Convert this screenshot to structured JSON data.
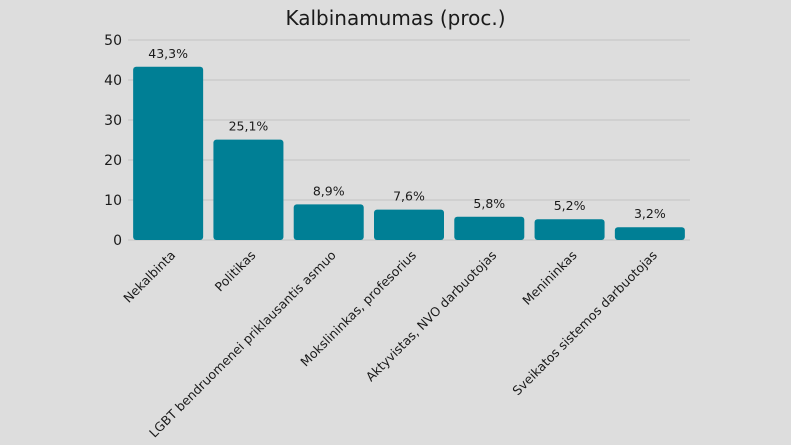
{
  "chart_data": {
    "type": "bar",
    "title": "Kalbinamumas (proc.)",
    "xlabel": "",
    "ylabel": "",
    "ylim": [
      0,
      50
    ],
    "yticks": [
      0,
      10,
      20,
      30,
      40,
      50
    ],
    "grid": true,
    "bar_color": "#007f95",
    "categories": [
      "Nekalbinta",
      "Politikas",
      "LGBT bendruomenei priklausantis asmuo",
      "Mokslininkas, profesorius",
      "Aktyvistas, NVO darbuotojas",
      "Menininkas",
      "Sveikatos sistemos darbuotojas"
    ],
    "values": [
      43.3,
      25.1,
      8.9,
      7.6,
      5.8,
      5.2,
      3.2
    ],
    "data_labels": [
      "43,3%",
      "25,1%",
      "8,9%",
      "7,6%",
      "5,8%",
      "5,2%",
      "3,2%"
    ]
  }
}
